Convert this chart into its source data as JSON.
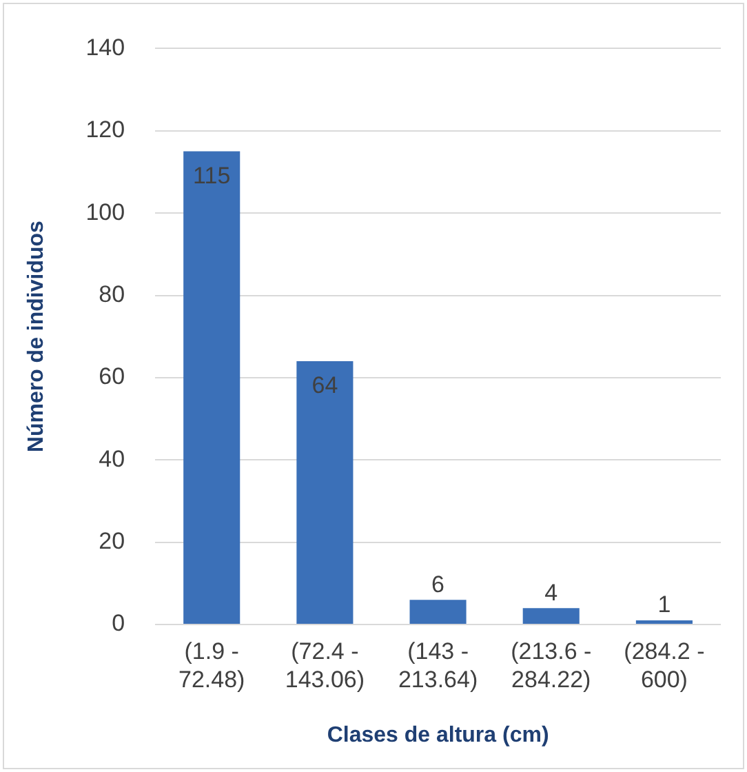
{
  "chart_data": {
    "type": "bar",
    "categories": [
      "(1.9 - 72.48)",
      "(72.4 - 143.06)",
      "(143 - 213.64)",
      "(213.6 - 284.22)",
      "(284.2 - 600)"
    ],
    "values": [
      115,
      64,
      6,
      4,
      1
    ],
    "color": "#3b70b8",
    "xlabel": "Clases de altura (cm)",
    "ylabel": "Número de individuos",
    "ylim": [
      0,
      140
    ],
    "yticks": [
      0,
      20,
      40,
      60,
      80,
      100,
      120,
      140
    ],
    "grid": "y",
    "data_labels": true
  }
}
